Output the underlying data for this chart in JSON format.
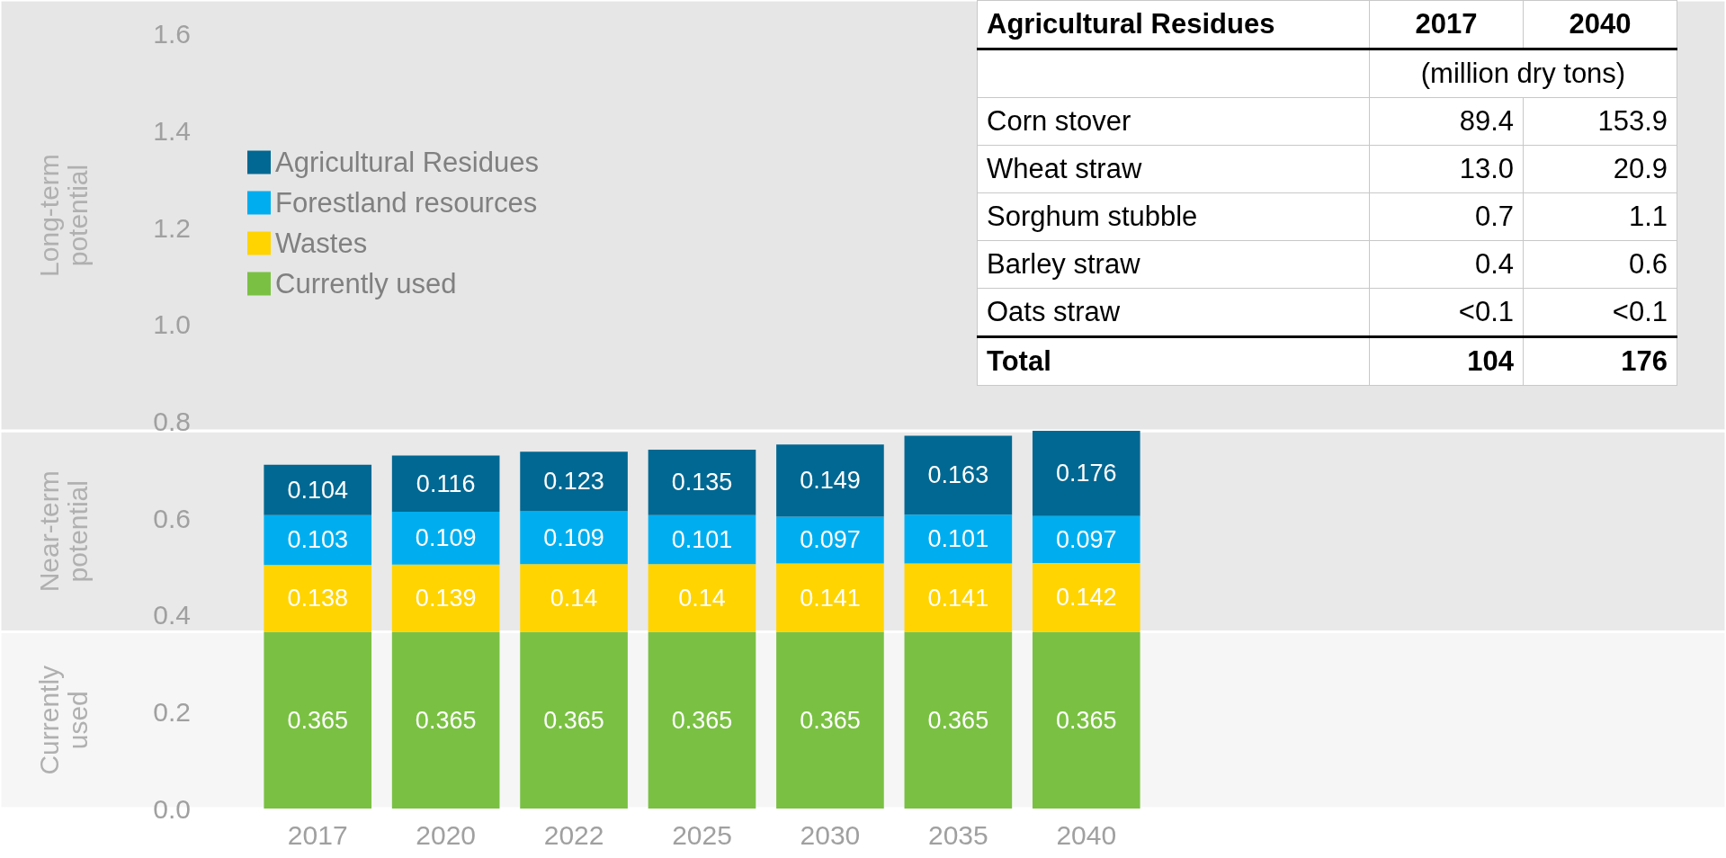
{
  "chart_data": [
    {
      "type": "bar",
      "stacked": true,
      "categories": [
        "2017",
        "2020",
        "2022",
        "2025",
        "2030",
        "2035",
        "2040"
      ],
      "series": [
        {
          "name": "Currently used",
          "color": "#7ac143",
          "values": [
            0.365,
            0.365,
            0.365,
            0.365,
            0.365,
            0.365,
            0.365
          ]
        },
        {
          "name": "Wastes",
          "color": "#ffd400",
          "values": [
            0.138,
            0.139,
            0.14,
            0.14,
            0.141,
            0.141,
            0.142
          ]
        },
        {
          "name": "Forestland resources",
          "color": "#00aeef",
          "values": [
            0.103,
            0.109,
            0.109,
            0.101,
            0.097,
            0.101,
            0.097
          ]
        },
        {
          "name": "Agricultural Residues",
          "color": "#006892",
          "values": [
            0.104,
            0.116,
            0.123,
            0.135,
            0.149,
            0.163,
            0.176
          ]
        }
      ],
      "ylim": [
        0,
        1.67
      ],
      "yticks": [
        {
          "value": 0,
          "label": "0.0"
        },
        {
          "value": 0.2,
          "label": "0.2"
        },
        {
          "value": 0.4,
          "label": "0.4"
        },
        {
          "value": 0.6,
          "label": "0.6"
        },
        {
          "value": 0.8,
          "label": "0.8"
        },
        {
          "value": 1.0,
          "label": "1.0"
        },
        {
          "value": 1.2,
          "label": "1.2"
        },
        {
          "value": 1.4,
          "label": "1.4"
        },
        {
          "value": 1.6,
          "label": "1.6"
        }
      ],
      "bands": [
        {
          "axis": "y",
          "from": 0,
          "to": 0.365,
          "label": "Currently used",
          "color": "#f6f6f6"
        },
        {
          "axis": "y",
          "from": 0.365,
          "to": 0.78,
          "label": "Near-term potential",
          "color": "#e9e9e9"
        },
        {
          "axis": "y",
          "from": 0.78,
          "to": 1.67,
          "label": "Long-term potential",
          "color": "#e6e6e6"
        }
      ],
      "data_labels": true,
      "grid": false,
      "legend": "left"
    },
    {
      "type": "other",
      "title": "Agricultural Residues",
      "subtitle": "(million dry tons)",
      "categories": [
        "2017",
        "2040"
      ],
      "y_categories": [
        "Corn stover",
        "Wheat straw",
        "Sorghum stubble",
        "Barley straw",
        "Oats straw",
        "Total"
      ],
      "cell_labels": [
        [
          "89.4",
          "153.9"
        ],
        [
          "13.0",
          "20.9"
        ],
        [
          "0.7",
          "1.1"
        ],
        [
          "0.4",
          "0.6"
        ],
        [
          "<0.1",
          "<0.1"
        ],
        [
          "104",
          "176"
        ]
      ]
    }
  ]
}
